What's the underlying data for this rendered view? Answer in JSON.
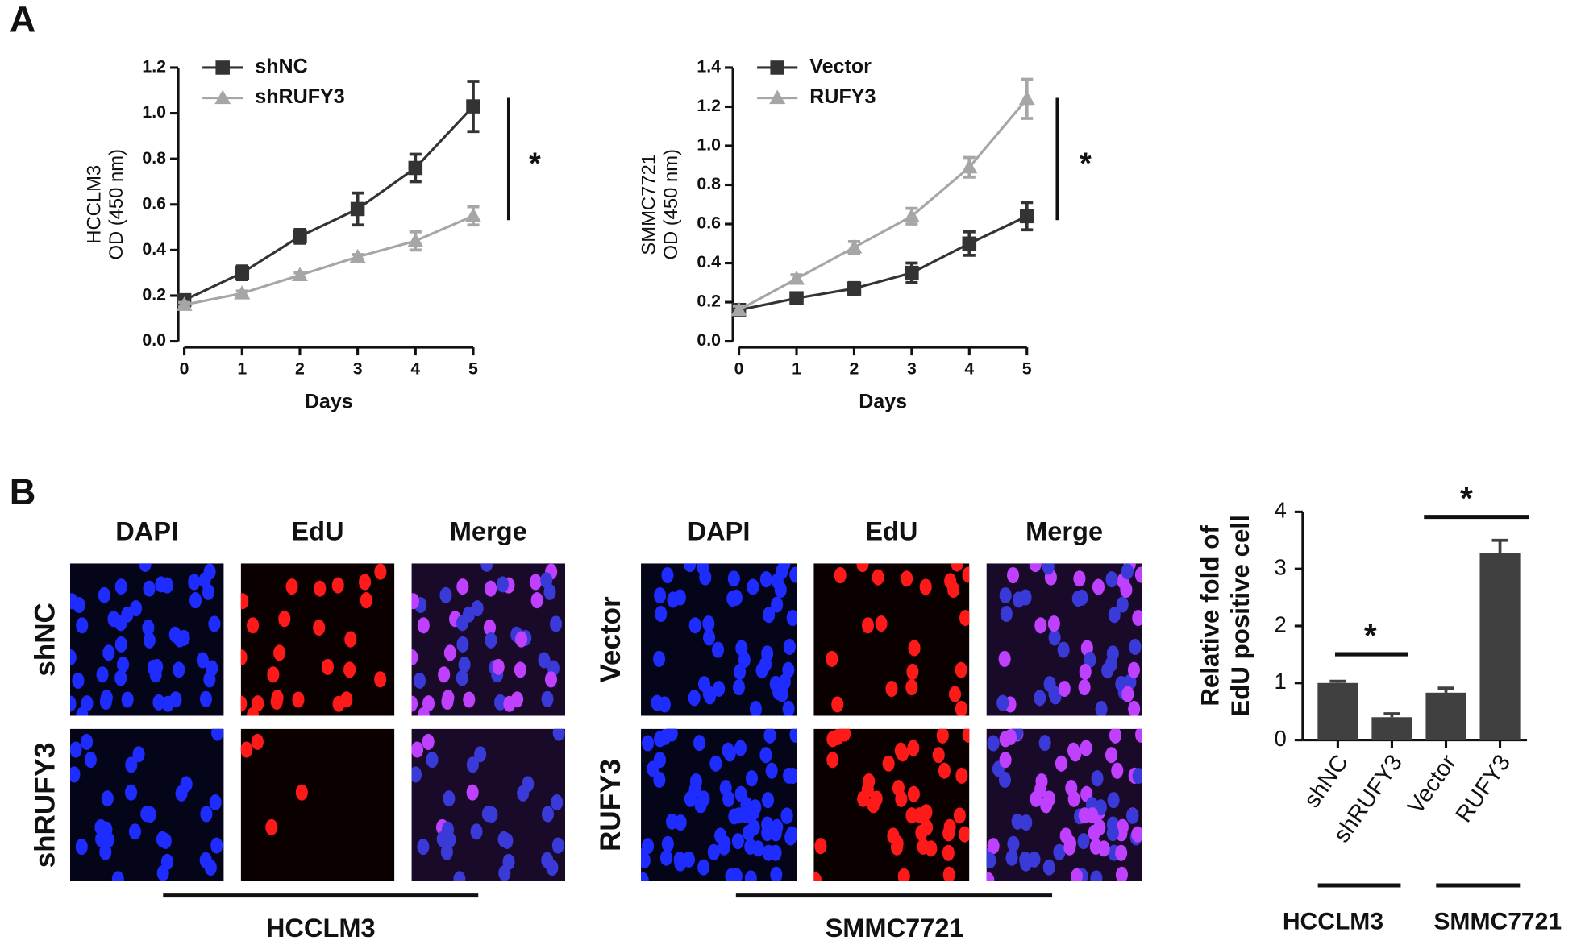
{
  "panel_labels": [
    "A",
    "B"
  ],
  "chart_data": [
    {
      "type": "line",
      "ylabel": [
        "HCCLM3",
        "OD (450 nm)"
      ],
      "xlabel": "Days",
      "x": [
        0,
        1,
        2,
        3,
        4,
        5
      ],
      "xlim": [
        0,
        5
      ],
      "xticks": [
        0,
        1,
        2,
        3,
        4,
        5
      ],
      "ylim": [
        0,
        1.2
      ],
      "yticks": [
        {
          "value": 0,
          "label": "0.0"
        },
        0.2,
        0.4,
        0.6,
        0.8,
        {
          "value": 1,
          "label": "1.0"
        },
        1.2
      ],
      "legend": "upper left",
      "annotation": "*",
      "series": [
        {
          "name": "shNC",
          "color": "#333333",
          "marker": "square",
          "values": [
            0.18,
            0.3,
            0.46,
            0.58,
            0.76,
            1.03
          ],
          "errors": [
            0.02,
            0.03,
            0.03,
            0.07,
            0.06,
            0.11
          ]
        },
        {
          "name": "shRUFY3",
          "color": "#a6a6a6",
          "marker": "triangle",
          "values": [
            0.16,
            0.21,
            0.29,
            0.37,
            0.44,
            0.55
          ],
          "errors": [
            0.01,
            0.01,
            0.01,
            0.01,
            0.04,
            0.04
          ]
        }
      ]
    },
    {
      "type": "line",
      "ylabel": [
        "SMMC7721",
        "OD (450 nm)"
      ],
      "xlabel": "Days",
      "x": [
        0,
        1,
        2,
        3,
        4,
        5
      ],
      "xlim": [
        0,
        5
      ],
      "xticks": [
        0,
        1,
        2,
        3,
        4,
        5
      ],
      "ylim": [
        0,
        1.4
      ],
      "yticks": [
        {
          "value": 0,
          "label": "0.0"
        },
        0.2,
        0.4,
        0.6,
        0.8,
        {
          "value": 1,
          "label": "1.0"
        },
        1.2,
        1.4
      ],
      "legend": "upper left",
      "annotation": "*",
      "series": [
        {
          "name": "Vector",
          "color": "#333333",
          "marker": "square",
          "values": [
            0.16,
            0.22,
            0.27,
            0.35,
            0.5,
            0.64
          ],
          "errors": [
            0.02,
            0.02,
            0.03,
            0.05,
            0.06,
            0.07
          ]
        },
        {
          "name": "RUFY3",
          "color": "#a6a6a6",
          "marker": "triangle",
          "values": [
            0.16,
            0.32,
            0.48,
            0.64,
            0.89,
            1.24
          ],
          "errors": [
            0.02,
            0.02,
            0.03,
            0.04,
            0.05,
            0.1
          ]
        }
      ]
    },
    {
      "type": "bar",
      "ylabel": [
        "Relative fold of",
        "EdU positive cell"
      ],
      "categories": [
        "shNC",
        "shRUFY3",
        "Vector",
        "RUFY3"
      ],
      "values": [
        1.0,
        0.4,
        0.83,
        3.28
      ],
      "errors": [
        0.03,
        0.06,
        0.08,
        0.22
      ],
      "color": "#404040",
      "ylim": [
        0,
        4
      ],
      "yticks": [
        0,
        1,
        2,
        3,
        4
      ],
      "groups": [
        "HCCLM3",
        "SMMC7721"
      ],
      "annotations": [
        "*",
        "*"
      ]
    }
  ],
  "micrographs": [
    {
      "columns": [
        "DAPI",
        "EdU",
        "Merge"
      ],
      "rows": [
        "shNC",
        "shRUFY3"
      ],
      "cell_line": "HCCLM3"
    },
    {
      "columns": [
        "DAPI",
        "EdU",
        "Merge"
      ],
      "rows": [
        "Vector",
        "RUFY3"
      ],
      "cell_line": "SMMC7721"
    }
  ]
}
